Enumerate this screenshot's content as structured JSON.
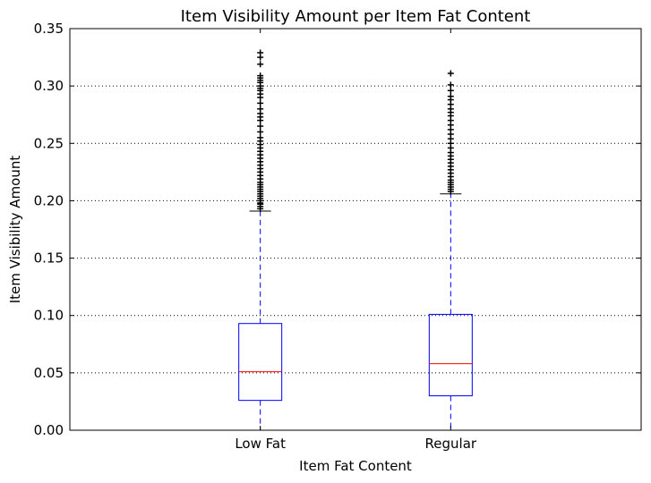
{
  "chart_data": {
    "type": "box",
    "title": "Item Visibility Amount per Item Fat Content",
    "xlabel": "Item Fat Content",
    "ylabel": "Item Visibility Amount",
    "categories": [
      "Low Fat",
      "Regular"
    ],
    "ylim": [
      0.0,
      0.35
    ],
    "yticks": [
      0.0,
      0.05,
      0.1,
      0.15,
      0.2,
      0.25,
      0.3,
      0.35
    ],
    "ytick_labels": [
      "0.00",
      "0.05",
      "0.10",
      "0.15",
      "0.20",
      "0.25",
      "0.30",
      "0.35"
    ],
    "grid": "y-dotted",
    "boxes": [
      {
        "category": "Low Fat",
        "whisker_low": 0.0,
        "q1": 0.026,
        "median": 0.051,
        "q3": 0.093,
        "whisker_high": 0.191,
        "outliers": [
          0.193,
          0.195,
          0.197,
          0.198,
          0.2,
          0.202,
          0.204,
          0.206,
          0.208,
          0.21,
          0.212,
          0.214,
          0.216,
          0.219,
          0.222,
          0.225,
          0.228,
          0.231,
          0.234,
          0.237,
          0.24,
          0.243,
          0.246,
          0.249,
          0.252,
          0.255,
          0.26,
          0.265,
          0.27,
          0.273,
          0.276,
          0.28,
          0.285,
          0.29,
          0.293,
          0.296,
          0.298,
          0.3,
          0.303,
          0.305,
          0.307,
          0.309,
          0.319,
          0.325,
          0.329
        ]
      },
      {
        "category": "Regular",
        "whisker_low": 0.0,
        "q1": 0.03,
        "median": 0.058,
        "q3": 0.101,
        "whisker_high": 0.206,
        "outliers": [
          0.208,
          0.21,
          0.212,
          0.214,
          0.216,
          0.218,
          0.221,
          0.224,
          0.227,
          0.23,
          0.233,
          0.236,
          0.239,
          0.242,
          0.246,
          0.25,
          0.254,
          0.258,
          0.262,
          0.266,
          0.27,
          0.274,
          0.277,
          0.28,
          0.284,
          0.288,
          0.291,
          0.296,
          0.301,
          0.311
        ]
      }
    ],
    "colors": {
      "box": "#0000ff",
      "whisker": "#0000ff",
      "median": "#ff0000",
      "cap": "#000000",
      "flier": "#000000"
    }
  }
}
